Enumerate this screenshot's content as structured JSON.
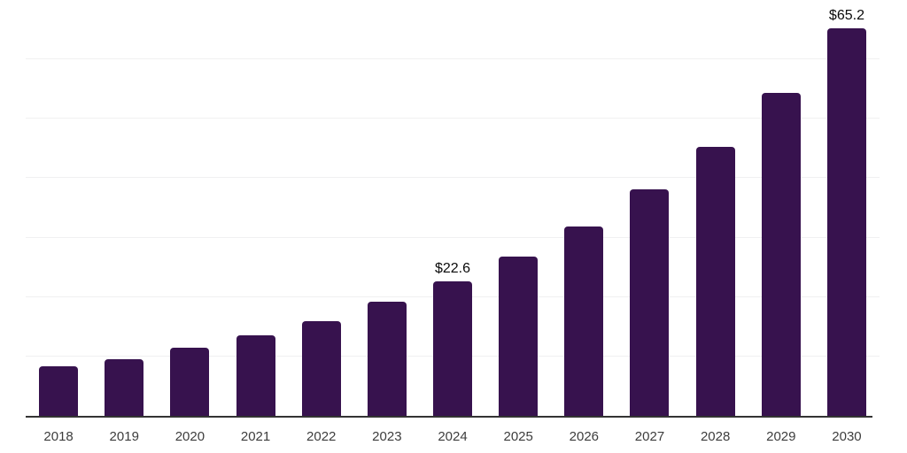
{
  "chart_data": {
    "type": "bar",
    "title": "",
    "categories": [
      "2018",
      "2019",
      "2020",
      "2021",
      "2022",
      "2023",
      "2024",
      "2025",
      "2026",
      "2027",
      "2028",
      "2029",
      "2030"
    ],
    "values": [
      8.3,
      9.5,
      11.5,
      13.5,
      16.0,
      19.2,
      22.6,
      26.8,
      31.9,
      38.1,
      45.3,
      54.3,
      65.2
    ],
    "data_labels": {
      "2024": "$22.6",
      "2030": "$65.2"
    },
    "xlabel": "",
    "ylabel": "",
    "ylim": [
      0,
      70
    ],
    "gridline_step": 10,
    "grid": true,
    "legend_position": "none",
    "colors": {
      "bar": "#37124E",
      "gridline": "#f0f0f1",
      "axis_line": "#333333",
      "tick_label": "#3d3d3d",
      "data_label": "#0a0a0a",
      "background": "#ffffff"
    }
  }
}
